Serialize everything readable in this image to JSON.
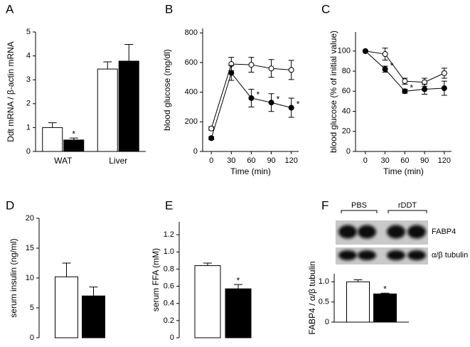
{
  "chart_data": [
    {
      "type": "bar",
      "label": "A",
      "ylabel": "Ddt mRNA / β-actin mRNA",
      "categories": [
        "WAT",
        "Liver"
      ],
      "series": [
        {
          "color": "#ffffff",
          "values": [
            1.0,
            3.45
          ],
          "errors": [
            0.2,
            0.3
          ],
          "significance": [
            null,
            null
          ]
        },
        {
          "color": "#000000",
          "values": [
            0.48,
            3.78
          ],
          "errors": [
            0.08,
            0.7
          ],
          "significance": [
            "*",
            null
          ]
        }
      ],
      "ylim": [
        0,
        5
      ],
      "yticks": [
        0,
        1,
        2,
        3,
        4,
        5
      ],
      "baseline": true
    },
    {
      "type": "line",
      "label": "B",
      "xlabel": "Time (min)",
      "ylabel": "blood glucose (mg/dl)",
      "x": [
        0,
        30,
        60,
        90,
        120
      ],
      "series": [
        {
          "color": "#ffffff",
          "values": [
            155,
            590,
            585,
            560,
            550
          ],
          "errors": [
            12,
            45,
            50,
            60,
            65
          ],
          "significance": [
            null,
            null,
            null,
            null,
            null
          ]
        },
        {
          "color": "#000000",
          "values": [
            90,
            530,
            360,
            330,
            295
          ],
          "errors": [
            10,
            50,
            60,
            60,
            65
          ],
          "significance": [
            null,
            null,
            "*",
            "*",
            "*"
          ]
        }
      ],
      "xlim": [
        -13,
        131
      ],
      "xticks": [
        0,
        30,
        60,
        90,
        120
      ],
      "ylim": [
        0,
        830
      ],
      "yticks": [
        0,
        200,
        400,
        600,
        800
      ]
    },
    {
      "type": "line",
      "label": "C",
      "xlabel": "Time (min)",
      "ylabel": "blood glucose (% of initial value)",
      "x": [
        0,
        30,
        60,
        90,
        120
      ],
      "series": [
        {
          "color": "#ffffff",
          "values": [
            100,
            97,
            70,
            69,
            78
          ],
          "errors": [
            0,
            6,
            3,
            4,
            5
          ],
          "significance": [
            null,
            null,
            null,
            null,
            null
          ]
        },
        {
          "color": "#000000",
          "values": [
            100,
            82,
            60,
            62,
            63
          ],
          "errors": [
            0,
            3,
            2,
            5,
            7
          ],
          "significance": [
            null,
            "*",
            "*",
            null,
            null
          ]
        }
      ],
      "xlim": [
        -15,
        131
      ],
      "xticks": [
        0,
        30,
        60,
        90,
        120
      ],
      "ylim": [
        0,
        119
      ],
      "yticks": [
        0,
        20,
        40,
        60,
        80,
        100
      ]
    },
    {
      "type": "bar",
      "label": "D",
      "ylabel": "serum insulin (ng/ml)",
      "categories": [
        null
      ],
      "series": [
        {
          "color": "#ffffff",
          "values": [
            10.2
          ],
          "errors": [
            2.3
          ],
          "significance": [
            null
          ]
        },
        {
          "color": "#000000",
          "values": [
            7.0
          ],
          "errors": [
            1.5
          ],
          "significance": [
            null
          ]
        }
      ],
      "ylim": [
        0,
        20
      ],
      "yticks": [
        0,
        5,
        10,
        15,
        20
      ],
      "baseline": false
    },
    {
      "type": "bar",
      "label": "E",
      "ylabel": "serum FFA (mM)",
      "categories": [
        null
      ],
      "series": [
        {
          "color": "#ffffff",
          "values": [
            0.84
          ],
          "errors": [
            0.03
          ],
          "significance": [
            null
          ]
        },
        {
          "color": "#000000",
          "values": [
            0.57
          ],
          "errors": [
            0.05
          ],
          "significance": [
            "*"
          ]
        }
      ],
      "ylim": [
        0,
        1.35
      ],
      "yticks": [
        0,
        0.2,
        0.4,
        0.6,
        0.8,
        {
          "value": 1,
          "label": "1.0"
        },
        1.2
      ],
      "baseline": false
    },
    {
      "type": "bar",
      "label": "F",
      "ylabel": "FABP4 / α/β tubulin",
      "categories": [
        null
      ],
      "series": [
        {
          "color": "#ffffff",
          "values": [
            1.0
          ],
          "errors": [
            0.05
          ],
          "significance": [
            null
          ]
        },
        {
          "color": "#000000",
          "values": [
            0.7
          ],
          "errors": [
            0.02
          ],
          "significance": [
            "*"
          ]
        }
      ],
      "ylim": [
        0,
        1.2
      ],
      "yticks": [
        0,
        0.5,
        {
          "value": 1,
          "label": "1.0"
        }
      ],
      "baseline": true,
      "blot": {
        "groups": [
          "PBS",
          "rDDT"
        ],
        "bands": [
          "FABP4",
          "α/β tubulin"
        ]
      }
    }
  ]
}
